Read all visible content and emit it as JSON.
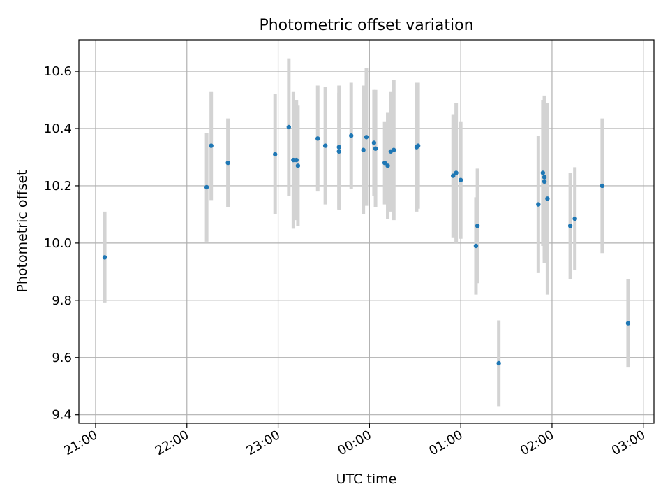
{
  "chart_data": {
    "type": "scatter",
    "title": "Photometric offset variation",
    "xlabel": "UTC time",
    "ylabel": "Photometric offset",
    "x_ticks": [
      "21:00",
      "22:00",
      "23:00",
      "00:00",
      "01:00",
      "02:00",
      "03:00"
    ],
    "y_ticks": [
      "9.4",
      "9.6",
      "9.8",
      "10.0",
      "10.2",
      "10.4",
      "10.6"
    ],
    "x_range": [
      "20:49",
      "03:07"
    ],
    "ylim": [
      9.37,
      10.71
    ],
    "grid": true,
    "colors": {
      "point": "#1f77b4",
      "errorbar": "#d3d3d3",
      "grid": "#b0b0b0"
    },
    "points": [
      {
        "t": "21:06",
        "y": 9.95,
        "err": 0.16
      },
      {
        "t": "22:13",
        "y": 10.195,
        "err": 0.19
      },
      {
        "t": "22:16",
        "y": 10.34,
        "err": 0.19
      },
      {
        "t": "22:27",
        "y": 10.28,
        "err": 0.155
      },
      {
        "t": "22:58",
        "y": 10.31,
        "err": 0.21
      },
      {
        "t": "23:07",
        "y": 10.405,
        "err": 0.24
      },
      {
        "t": "23:10",
        "y": 10.29,
        "err": 0.24
      },
      {
        "t": "23:12",
        "y": 10.29,
        "err": 0.21
      },
      {
        "t": "23:13",
        "y": 10.27,
        "err": 0.21
      },
      {
        "t": "23:26",
        "y": 10.365,
        "err": 0.185
      },
      {
        "t": "23:31",
        "y": 10.34,
        "err": 0.205
      },
      {
        "t": "23:40",
        "y": 10.32,
        "err": 0.205
      },
      {
        "t": "23:40",
        "y": 10.335,
        "err": 0.215
      },
      {
        "t": "23:48",
        "y": 10.375,
        "err": 0.185
      },
      {
        "t": "23:56",
        "y": 10.325,
        "err": 0.225
      },
      {
        "t": "23:58",
        "y": 10.37,
        "err": 0.24
      },
      {
        "t": "00:03",
        "y": 10.35,
        "err": 0.185
      },
      {
        "t": "00:04",
        "y": 10.33,
        "err": 0.205
      },
      {
        "t": "00:10",
        "y": 10.28,
        "err": 0.145
      },
      {
        "t": "00:12",
        "y": 10.27,
        "err": 0.185
      },
      {
        "t": "00:14",
        "y": 10.32,
        "err": 0.21
      },
      {
        "t": "00:16",
        "y": 10.325,
        "err": 0.245
      },
      {
        "t": "00:31",
        "y": 10.335,
        "err": 0.225
      },
      {
        "t": "00:32",
        "y": 10.34,
        "err": 0.22
      },
      {
        "t": "00:55",
        "y": 10.235,
        "err": 0.215
      },
      {
        "t": "00:57",
        "y": 10.245,
        "err": 0.245
      },
      {
        "t": "01:00",
        "y": 10.22,
        "err": 0.205
      },
      {
        "t": "01:10",
        "y": 9.99,
        "err": 0.17
      },
      {
        "t": "01:11",
        "y": 10.06,
        "err": 0.2
      },
      {
        "t": "01:25",
        "y": 9.58,
        "err": 0.15
      },
      {
        "t": "01:51",
        "y": 10.135,
        "err": 0.24
      },
      {
        "t": "01:54",
        "y": 10.245,
        "err": 0.255
      },
      {
        "t": "01:55",
        "y": 10.215,
        "err": 0.285
      },
      {
        "t": "01:55",
        "y": 10.23,
        "err": 0.285
      },
      {
        "t": "01:57",
        "y": 10.155,
        "err": 0.335
      },
      {
        "t": "02:12",
        "y": 10.06,
        "err": 0.185
      },
      {
        "t": "02:15",
        "y": 10.085,
        "err": 0.18
      },
      {
        "t": "02:33",
        "y": 10.2,
        "err": 0.235
      },
      {
        "t": "02:50",
        "y": 9.72,
        "err": 0.155
      }
    ]
  }
}
